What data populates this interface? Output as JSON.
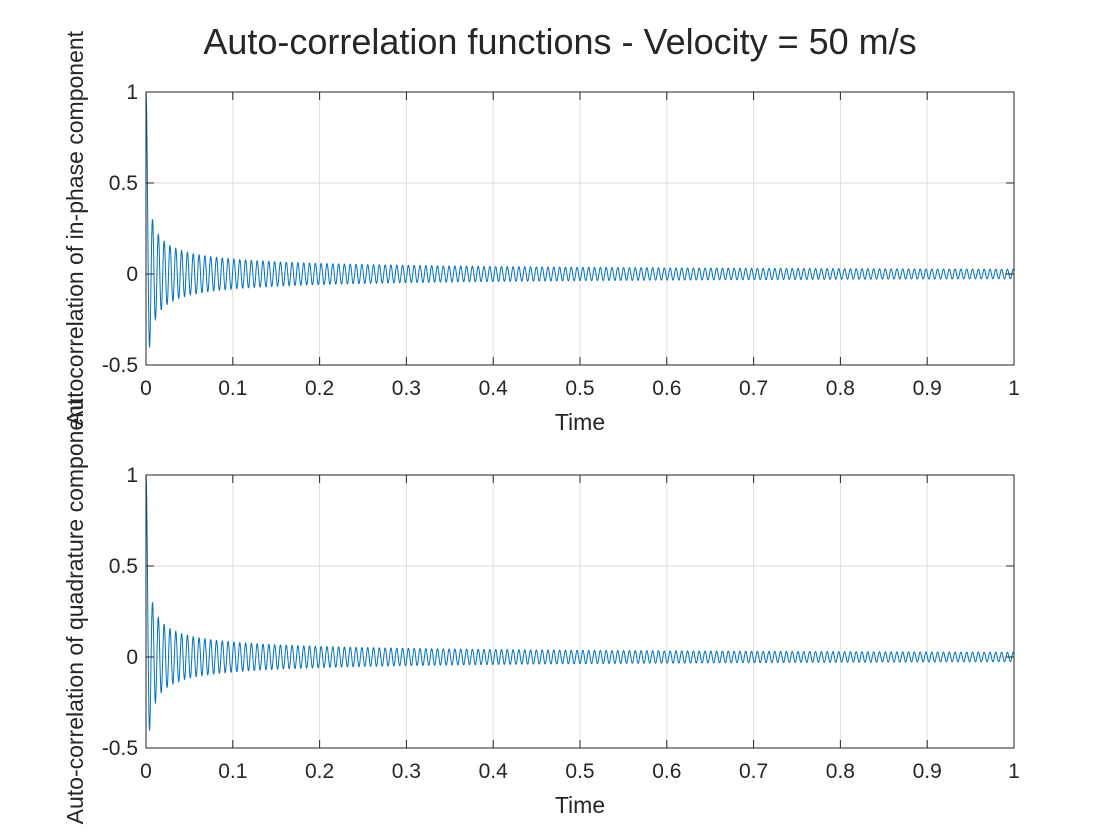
{
  "figure": {
    "title": "Auto-correlation functions - Velocity = 50 m/s"
  },
  "chart_data": [
    {
      "type": "line",
      "title": "",
      "xlabel": "Time",
      "ylabel": "Autocorrelation of in-phase component",
      "xlim": [
        0,
        1
      ],
      "ylim": [
        -0.5,
        1
      ],
      "xticks": [
        0,
        0.1,
        0.2,
        0.3,
        0.4,
        0.5,
        0.6,
        0.7,
        0.8,
        0.9,
        1
      ],
      "xticklabels": [
        "0",
        "0.1",
        "0.2",
        "0.3",
        "0.4",
        "0.5",
        "0.6",
        "0.7",
        "0.8",
        "0.9",
        "1"
      ],
      "yticks": [
        -0.5,
        0,
        0.5,
        1
      ],
      "yticklabels": [
        "-0.5",
        "0",
        "0.5",
        "1"
      ],
      "grid": true,
      "line_color": "#0072bd",
      "series": [
        {
          "description_values": "Damped oscillation (Bessel J0-like) starting at 1 at t=0, first minimum about -0.40, first maximum about 0.28, oscillation period about 0.0067 s, envelope decaying to about ±0.03 at t=1",
          "oscillation_period": 0.0067,
          "x": [
            0,
            0.003,
            0.0067,
            0.0133,
            0.02,
            0.05,
            0.1,
            0.2,
            0.4,
            0.6,
            0.8,
            1.0
          ],
          "values": [
            1,
            -0.1,
            -0.4,
            0.28,
            0.22,
            0.13,
            0.09,
            0.065,
            0.045,
            0.037,
            0.032,
            0.028
          ]
        }
      ]
    },
    {
      "type": "line",
      "title": "",
      "xlabel": "Time",
      "ylabel": "Auto-correlation of quadrature component",
      "xlim": [
        0,
        1
      ],
      "ylim": [
        -0.5,
        1
      ],
      "xticks": [
        0,
        0.1,
        0.2,
        0.3,
        0.4,
        0.5,
        0.6,
        0.7,
        0.8,
        0.9,
        1
      ],
      "xticklabels": [
        "0",
        "0.1",
        "0.2",
        "0.3",
        "0.4",
        "0.5",
        "0.6",
        "0.7",
        "0.8",
        "0.9",
        "1"
      ],
      "yticks": [
        -0.5,
        0,
        0.5,
        1
      ],
      "yticklabels": [
        "-0.5",
        "0",
        "0.5",
        "1"
      ],
      "grid": true,
      "line_color": "#0072bd",
      "series": [
        {
          "description_values": "Damped oscillation (Bessel J0-like) starting at 1 at t=0, first minimum about -0.40, first maximum about 0.28, oscillation period about 0.0067 s, envelope decaying to about ±0.03 at t=1",
          "oscillation_period": 0.0067,
          "x": [
            0,
            0.003,
            0.0067,
            0.0133,
            0.02,
            0.05,
            0.1,
            0.2,
            0.4,
            0.6,
            0.8,
            1.0
          ],
          "values": [
            1,
            -0.1,
            -0.4,
            0.28,
            0.22,
            0.13,
            0.09,
            0.065,
            0.045,
            0.037,
            0.032,
            0.028
          ]
        }
      ]
    }
  ]
}
